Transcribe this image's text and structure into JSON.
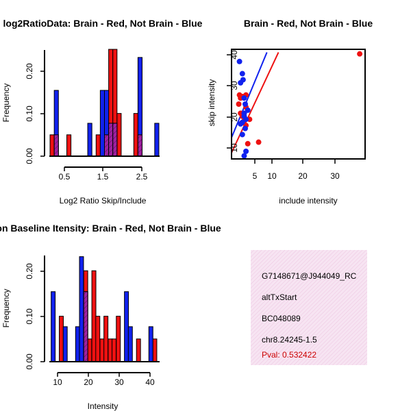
{
  "colors": {
    "brain": "#ee1111",
    "not_brain": "#1122ee",
    "overlap": "#a020a0",
    "pval": "#cc0000",
    "panel_bg": "#f7dff0"
  },
  "chart_data": [
    {
      "id": "ratio",
      "type": "bar",
      "title": "log2RatioData: Brain - Red, Not Brain - Blue",
      "xlabel": "Log2 Ratio Skip/Include",
      "ylabel": "Frequency",
      "xlim": [
        0.1,
        2.8
      ],
      "ylim": [
        0,
        0.25
      ],
      "xticks": [
        0.5,
        1.5,
        2.5
      ],
      "xtick_labels": [
        "0.5",
        "1.5",
        "2.5"
      ],
      "yticks": [
        0,
        0.1,
        0.2
      ],
      "ytick_labels": [
        "0.00",
        "0.10",
        "0.20"
      ],
      "bin_width": 0.1,
      "series": [
        {
          "name": "Brain",
          "bins": [
            {
              "x": 0.2,
              "v": 0.05
            },
            {
              "x": 0.3,
              "v": 0.05
            },
            {
              "x": 0.6,
              "v": 0.05
            },
            {
              "x": 1.3,
              "v": 0.05
            },
            {
              "x": 1.5,
              "v": 0.05
            },
            {
              "x": 1.6,
              "v": 0.25
            },
            {
              "x": 1.7,
              "v": 0.25
            },
            {
              "x": 1.8,
              "v": 0.1
            },
            {
              "x": 2.2,
              "v": 0.1
            },
            {
              "x": 2.3,
              "v": 0.05
            }
          ]
        },
        {
          "name": "Not Brain",
          "bins": [
            {
              "x": 0.3,
              "v": 0.154
            },
            {
              "x": 1.1,
              "v": 0.077
            },
            {
              "x": 1.4,
              "v": 0.154
            },
            {
              "x": 1.5,
              "v": 0.154
            },
            {
              "x": 1.6,
              "v": 0.077
            },
            {
              "x": 1.7,
              "v": 0.077
            },
            {
              "x": 2.3,
              "v": 0.231
            },
            {
              "x": 2.7,
              "v": 0.077
            }
          ]
        }
      ]
    },
    {
      "id": "scatter",
      "type": "scatter",
      "title": "Brain - Red, Not Brain - Blue",
      "xlabel": "include intensity",
      "ylabel": "skip intensity",
      "xlim": [
        3,
        40
      ],
      "ylim": [
        7,
        43
      ],
      "xticks": [
        5,
        10,
        20,
        30
      ],
      "xtick_labels": [
        "5",
        "10",
        "20",
        "30"
      ],
      "yticks": [
        10,
        20,
        30,
        40
      ],
      "ytick_labels": [
        "10",
        "20",
        "30",
        "40"
      ],
      "series": [
        {
          "name": "Brain",
          "points": [
            [
              38.5,
              41.5
            ],
            [
              5.2,
              28
            ],
            [
              5.5,
              27
            ],
            [
              6,
              27.5
            ],
            [
              7,
              28
            ],
            [
              5,
              25
            ],
            [
              5.5,
              22
            ],
            [
              6,
              21
            ],
            [
              6.5,
              19.5
            ],
            [
              8,
              20
            ],
            [
              7,
              18
            ],
            [
              10.5,
              12.5
            ],
            [
              7.5,
              12
            ],
            [
              6.5,
              22
            ],
            [
              7,
              24
            ],
            [
              5.8,
              18.8
            ]
          ]
        },
        {
          "name": "Not Brain",
          "points": [
            [
              5.2,
              39
            ],
            [
              6,
              35
            ],
            [
              6.2,
              33
            ],
            [
              5.5,
              32
            ],
            [
              6.5,
              27
            ],
            [
              6.8,
              25
            ],
            [
              6.5,
              22
            ],
            [
              7,
              20
            ],
            [
              6,
              19
            ],
            [
              5.5,
              18.5
            ],
            [
              6,
              15
            ],
            [
              7,
              9.5
            ],
            [
              6.5,
              8
            ],
            [
              6.5,
              21
            ],
            [
              7.5,
              23
            ],
            [
              6.8,
              17
            ]
          ]
        }
      ],
      "fit_lines": [
        {
          "name": "Brain",
          "x": [
            3,
            16
          ],
          "y": [
            9,
            42
          ]
        },
        {
          "name": "Not Brain",
          "x": [
            3,
            12.8
          ],
          "y": [
            14,
            42
          ]
        }
      ]
    },
    {
      "id": "intensity",
      "type": "bar",
      "title": "Exon Baseline Itensity: Brain - Red, Not Brain - Blue",
      "xlabel": "Intensity",
      "ylabel": "Frequency",
      "xlim": [
        7.8,
        42.5
      ],
      "ylim": [
        0,
        0.235
      ],
      "xticks": [
        10,
        20,
        30,
        40
      ],
      "xtick_labels": [
        "10",
        "20",
        "30",
        "40"
      ],
      "yticks": [
        0,
        0.1,
        0.2
      ],
      "ytick_labels": [
        "0.00",
        "0.10",
        "0.20"
      ],
      "bin_width": 1.25,
      "series": [
        {
          "name": "Brain",
          "bins": [
            {
              "x": 11.9,
              "v": 0.1
            },
            {
              "x": 19.4,
              "v": 0.2
            },
            {
              "x": 20.6,
              "v": 0.05
            },
            {
              "x": 21.9,
              "v": 0.2
            },
            {
              "x": 23.1,
              "v": 0.1
            },
            {
              "x": 24.4,
              "v": 0.05
            },
            {
              "x": 25.6,
              "v": 0.1
            },
            {
              "x": 26.9,
              "v": 0.05
            },
            {
              "x": 28.1,
              "v": 0.05
            },
            {
              "x": 29.4,
              "v": 0.1
            },
            {
              "x": 35.6,
              "v": 0.05
            },
            {
              "x": 40.6,
              "v": 0.05
            }
          ]
        },
        {
          "name": "Not Brain",
          "bins": [
            {
              "x": 9.4,
              "v": 0.154
            },
            {
              "x": 13.1,
              "v": 0.077
            },
            {
              "x": 16.9,
              "v": 0.077
            },
            {
              "x": 18.1,
              "v": 0.231
            },
            {
              "x": 19.4,
              "v": 0.154
            },
            {
              "x": 31.9,
              "v": 0.154
            },
            {
              "x": 33.1,
              "v": 0.077
            },
            {
              "x": 39.4,
              "v": 0.077
            }
          ]
        }
      ]
    }
  ],
  "info": {
    "probe_id": "G7148671@J944049_RC",
    "event_type": "altTxStart",
    "accession": "BC048089",
    "location": "chr8.24245-1.5",
    "pval_label": "Pval: 0.532422"
  }
}
